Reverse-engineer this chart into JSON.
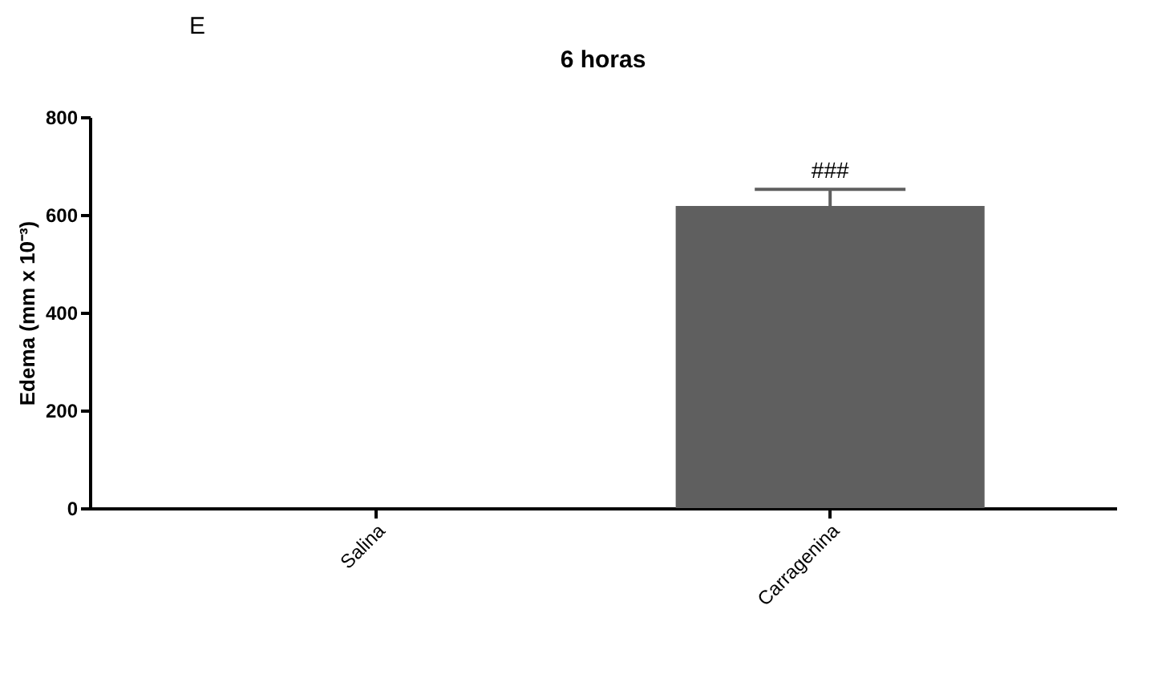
{
  "chart_data": {
    "type": "bar",
    "title": "6 horas",
    "ylabel": "Edema (mm x 10⁻³)",
    "categories": [
      "Salina",
      "Carragenina"
    ],
    "values": [
      0,
      618
    ],
    "errors": [
      null,
      [
        618,
        652
      ]
    ],
    "color": "#5f5f5f",
    "ylim": [
      0,
      800
    ],
    "yticks": [
      0,
      200,
      400,
      600,
      800
    ],
    "annotations": [
      "E",
      {
        "text": "###",
        "x": "Carragenina",
        "y": 652
      }
    ]
  }
}
